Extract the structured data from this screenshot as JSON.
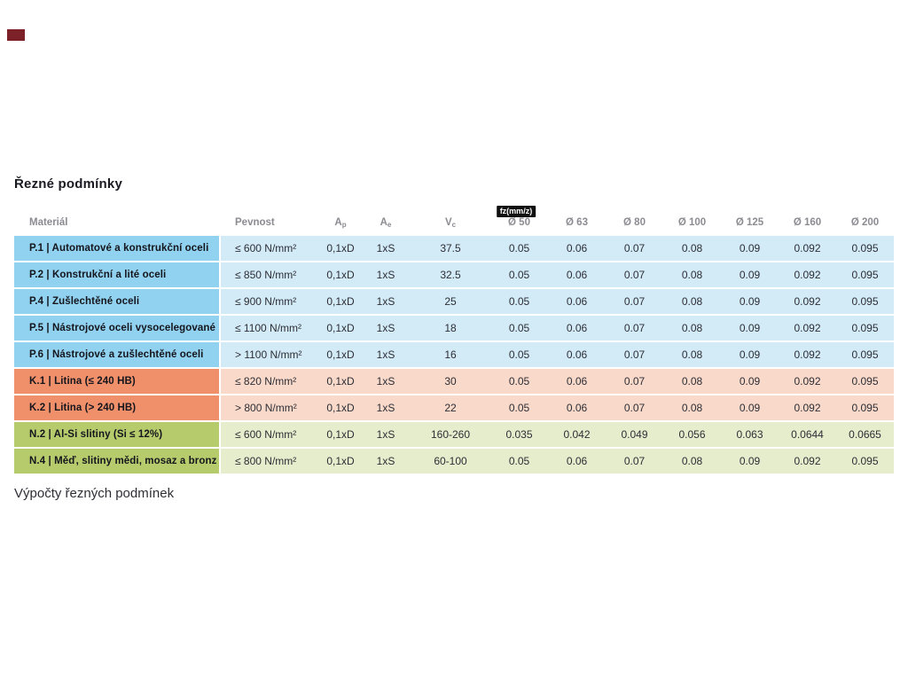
{
  "title": "Řezné podmínky",
  "footer": "Výpočty řezných podmínek",
  "table": {
    "headers": {
      "material": "Materiál",
      "pevnost": "Pevnost",
      "ap": {
        "base": "A",
        "sub": "p"
      },
      "ae": {
        "base": "A",
        "sub": "e"
      },
      "vc": {
        "base": "V",
        "sub": "c"
      },
      "fz_badge": "fz(mm/z)",
      "diameters": [
        "Ø 50",
        "Ø 63",
        "Ø 80",
        "Ø 100",
        "Ø 125",
        "Ø 160",
        "Ø 200"
      ]
    },
    "rows": [
      {
        "group": "P",
        "material": "P.1 | Automatové a konstrukční oceli",
        "pevnost": "≤ 600 N/mm²",
        "ap": "0,1xD",
        "ae": "1xS",
        "vc": "37.5",
        "fz": [
          "0.05",
          "0.06",
          "0.07",
          "0.08",
          "0.09",
          "0.092",
          "0.095"
        ]
      },
      {
        "group": "P",
        "material": "P.2 | Konstrukční a lité oceli",
        "pevnost": "≤ 850 N/mm²",
        "ap": "0,1xD",
        "ae": "1xS",
        "vc": "32.5",
        "fz": [
          "0.05",
          "0.06",
          "0.07",
          "0.08",
          "0.09",
          "0.092",
          "0.095"
        ]
      },
      {
        "group": "P",
        "material": "P.4 | Zušlechtěné oceli",
        "pevnost": "≤ 900 N/mm²",
        "ap": "0,1xD",
        "ae": "1xS",
        "vc": "25",
        "fz": [
          "0.05",
          "0.06",
          "0.07",
          "0.08",
          "0.09",
          "0.092",
          "0.095"
        ]
      },
      {
        "group": "P",
        "material": "P.5 | Nástrojové oceli vysocelegované",
        "pevnost": "≤ 1100 N/mm²",
        "ap": "0,1xD",
        "ae": "1xS",
        "vc": "18",
        "fz": [
          "0.05",
          "0.06",
          "0.07",
          "0.08",
          "0.09",
          "0.092",
          "0.095"
        ]
      },
      {
        "group": "P",
        "material": "P.6 | Nástrojové a zušlechtěné oceli",
        "pevnost": "> 1100 N/mm²",
        "ap": "0,1xD",
        "ae": "1xS",
        "vc": "16",
        "fz": [
          "0.05",
          "0.06",
          "0.07",
          "0.08",
          "0.09",
          "0.092",
          "0.095"
        ]
      },
      {
        "group": "K",
        "material": "K.1 | Litina (≤ 240 HB)",
        "pevnost": "≤ 820 N/mm²",
        "ap": "0,1xD",
        "ae": "1xS",
        "vc": "30",
        "fz": [
          "0.05",
          "0.06",
          "0.07",
          "0.08",
          "0.09",
          "0.092",
          "0.095"
        ]
      },
      {
        "group": "K",
        "material": "K.2 | Litina (> 240 HB)",
        "pevnost": "> 800 N/mm²",
        "ap": "0,1xD",
        "ae": "1xS",
        "vc": "22",
        "fz": [
          "0.05",
          "0.06",
          "0.07",
          "0.08",
          "0.09",
          "0.092",
          "0.095"
        ]
      },
      {
        "group": "N",
        "material": "N.2 | Al-Si slitiny (Si ≤ 12%)",
        "pevnost": "≤ 600 N/mm²",
        "ap": "0,1xD",
        "ae": "1xS",
        "vc": "160-260",
        "fz": [
          "0.035",
          "0.042",
          "0.049",
          "0.056",
          "0.063",
          "0.0644",
          "0.0665"
        ]
      },
      {
        "group": "N",
        "material": "N.4 | Měď, slitiny mědi, mosaz a bronz",
        "pevnost": "≤ 800 N/mm²",
        "ap": "0,1xD",
        "ae": "1xS",
        "vc": "60-100",
        "fz": [
          "0.05",
          "0.06",
          "0.07",
          "0.08",
          "0.09",
          "0.092",
          "0.095"
        ]
      }
    ]
  },
  "colors": {
    "blue_dark": "#90d2ef",
    "blue_light": "#d2ebf7",
    "orange_dark": "#f0906a",
    "orange_light": "#f9d9c9",
    "green_dark": "#b6cc6c",
    "green_light": "#e5edcc",
    "badge_bg": "#101010",
    "marker": "#7c2128"
  }
}
